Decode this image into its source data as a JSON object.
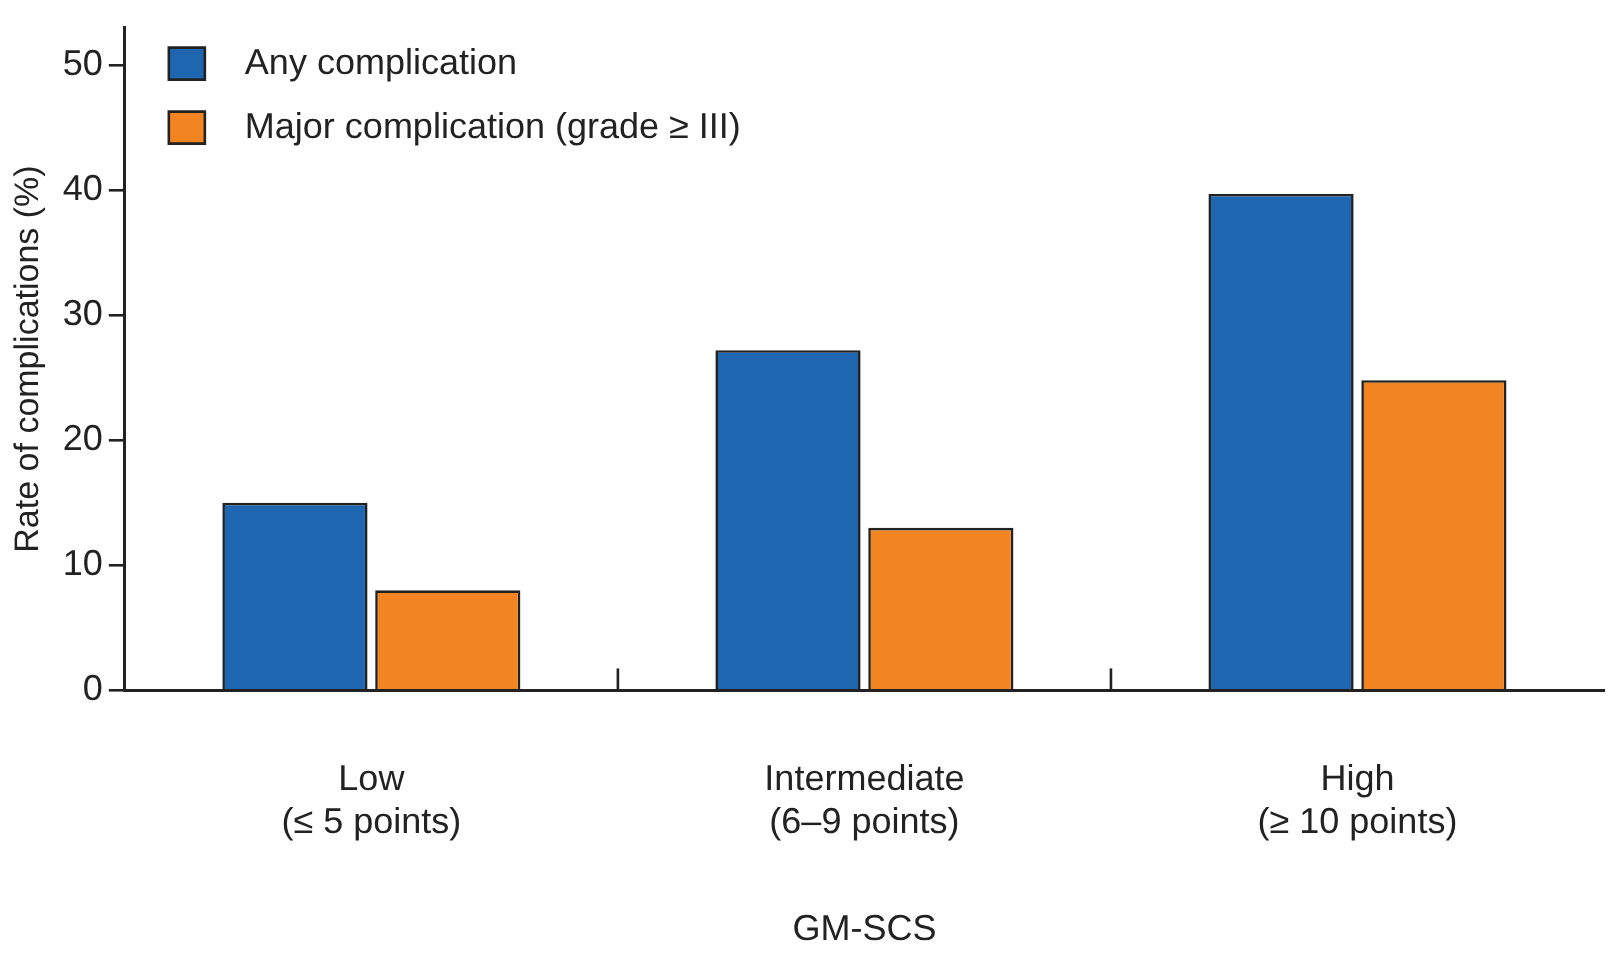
{
  "chart_data": {
    "type": "bar",
    "xlabel": "GM-SCS",
    "ylabel": "Rate of complications (%)",
    "categories": [
      "Low\n(≤ 5 points)",
      "Intermediate\n(6–9 points)",
      "High\n(≥ 10 points)"
    ],
    "series": [
      {
        "name": "Any complication",
        "color": "#1f66b0",
        "values": [
          15,
          27.2,
          39.7
        ]
      },
      {
        "name": "Major complication (grade ≥ III)",
        "color": "#f28522",
        "values": [
          8,
          13,
          24.8
        ]
      }
    ],
    "ylim": [
      0,
      53
    ],
    "yticks": [
      0,
      10,
      20,
      30,
      40,
      50
    ],
    "legend": "top left"
  }
}
